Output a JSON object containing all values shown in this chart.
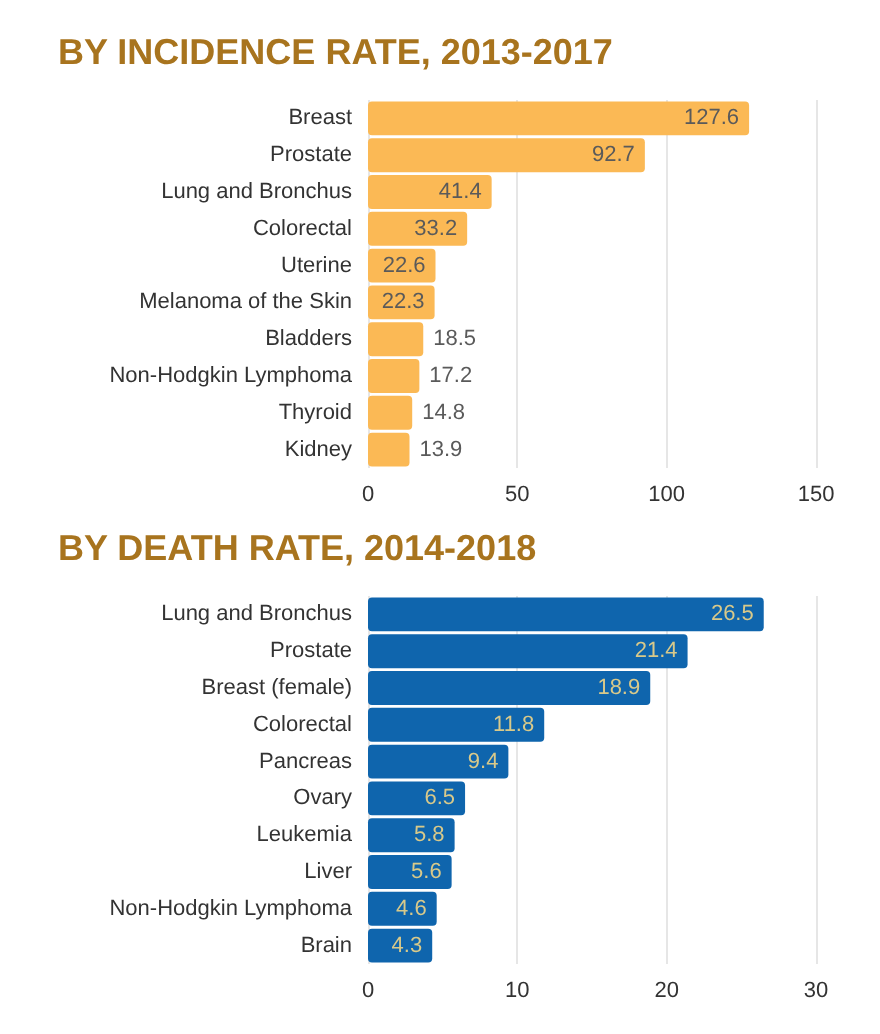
{
  "chart_data": [
    {
      "type": "bar",
      "orientation": "horizontal",
      "title": "BY INCIDENCE RATE, 2013-2017",
      "categories": [
        "Breast",
        "Prostate",
        "Lung and Bronchus",
        "Colorectal",
        "Uterine",
        "Melanoma of the Skin",
        "Bladders",
        "Non-Hodgkin Lymphoma",
        "Thyroid",
        "Kidney"
      ],
      "values": [
        127.6,
        92.7,
        41.4,
        33.2,
        22.6,
        22.3,
        18.5,
        17.2,
        14.8,
        13.9
      ],
      "color": "#fbb955",
      "xlim": [
        0,
        150
      ],
      "xticks": [
        0,
        50,
        100,
        150
      ],
      "grid": "x",
      "data_labels": true
    },
    {
      "type": "bar",
      "orientation": "horizontal",
      "title": "BY DEATH RATE, 2014-2018",
      "categories": [
        "Lung and Bronchus",
        "Prostate",
        "Breast (female)",
        "Colorectal",
        "Pancreas",
        "Ovary",
        "Leukemia",
        "Liver",
        "Non-Hodgkin Lymphoma",
        "Brain"
      ],
      "values": [
        26.5,
        21.4,
        18.9,
        11.8,
        9.4,
        6.5,
        5.8,
        5.6,
        4.6,
        4.3
      ],
      "color": "#0f65ad",
      "xlim": [
        0,
        30
      ],
      "xticks": [
        0,
        10,
        20,
        30
      ],
      "grid": "x",
      "data_labels": true
    }
  ]
}
